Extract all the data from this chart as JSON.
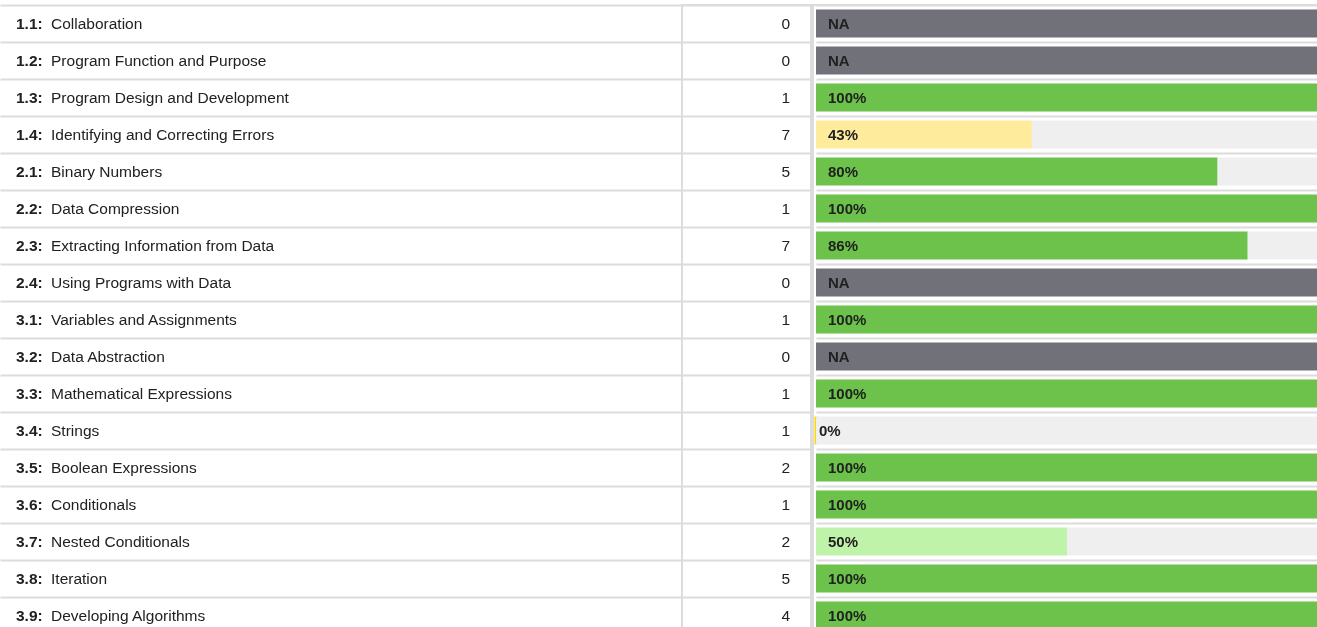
{
  "chart_data": {
    "type": "bar",
    "orientation": "horizontal",
    "stacked": true,
    "categories": [
      "1.1: Collaboration",
      "1.2: Program Function and Purpose",
      "1.3: Program Design and Development",
      "1.4: Identifying and Correcting Errors",
      "2.1: Binary Numbers",
      "2.2: Data Compression",
      "2.3: Extracting Information from Data",
      "2.4: Using Programs with Data",
      "3.1: Variables and Assignments",
      "3.2: Data Abstraction",
      "3.3: Mathematical Expressions",
      "3.4: Strings",
      "3.5: Boolean Expressions",
      "3.6: Conditionals",
      "3.7: Nested Conditionals",
      "3.8: Iteration",
      "3.9: Developing Algorithms"
    ],
    "series": [
      {
        "values": [
          null,
          null,
          100,
          43,
          80,
          100,
          86,
          null,
          100,
          null,
          100,
          0,
          100,
          100,
          50,
          100,
          100
        ],
        "colors": [
          null,
          null,
          "#6cc24a",
          "#ffeb9c",
          "#6cc24a",
          "#6cc24a",
          "#6cc24a",
          null,
          "#6cc24a",
          null,
          "#6cc24a",
          "#ffd700",
          "#6cc24a",
          "#6cc24a",
          "#c0f3aa",
          "#6cc24a",
          "#6cc24a"
        ],
        "value_labels": [
          null,
          null,
          "100%",
          "43%",
          "80%",
          "100%",
          "86%",
          null,
          "100%",
          null,
          "100%",
          "0%",
          "100%",
          "100%",
          "50%",
          "100%",
          "100%"
        ]
      },
      {
        "values": [
          100,
          100,
          null,
          57,
          20,
          null,
          14,
          100,
          null,
          100,
          null,
          100,
          null,
          null,
          50,
          null,
          null
        ],
        "colors": [
          "#71717a",
          "#71717a",
          null,
          "#efefef",
          "#efefef",
          null,
          "#efefef",
          "#71717a",
          null,
          "#71717a",
          null,
          "#efefef",
          null,
          null,
          "#efefef",
          null,
          null
        ],
        "value_labels": [
          "NA",
          "NA",
          null,
          null,
          null,
          null,
          null,
          "NA",
          null,
          "NA",
          null,
          null,
          null,
          null,
          null,
          null,
          null
        ]
      }
    ],
    "xlim": [
      0,
      100
    ],
    "tick_labels": "y",
    "grid": "y",
    "annotations": [
      "0",
      "0",
      "1",
      "7",
      "5",
      "1",
      "7",
      "0",
      "1",
      "0",
      "1",
      "1",
      "2",
      "1",
      "2",
      "5",
      "4"
    ]
  }
}
